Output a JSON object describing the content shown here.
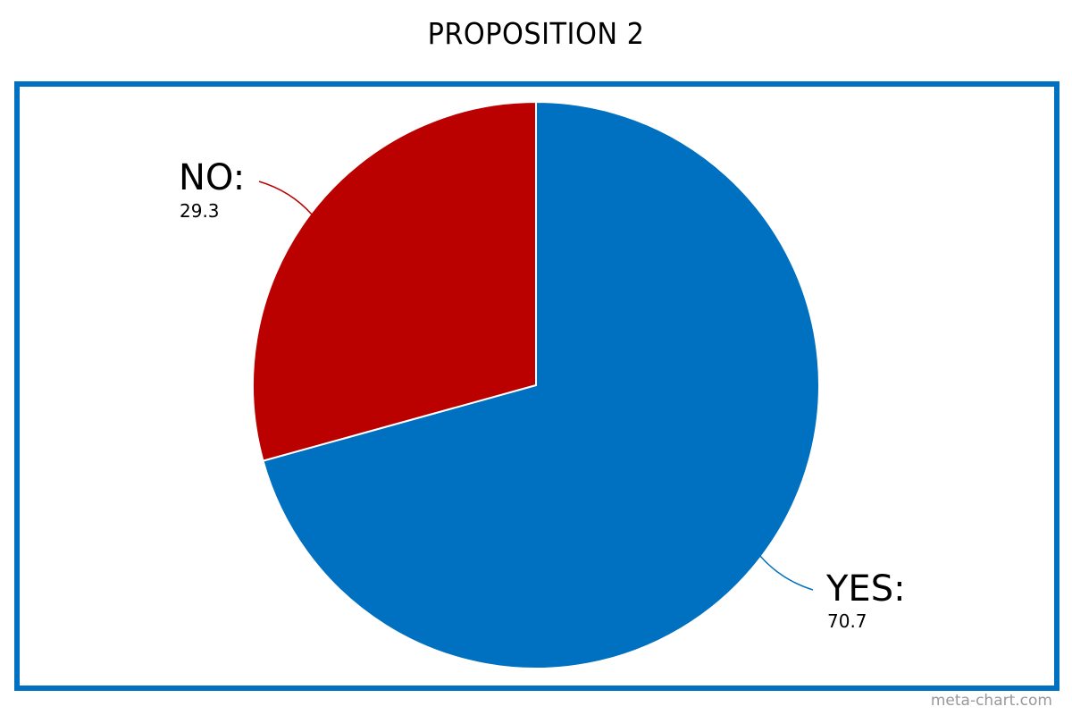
{
  "chart_data": {
    "type": "pie",
    "title": "PROPOSITION 2",
    "slices": [
      {
        "label": "YES:",
        "value": 70.7,
        "value_text": "70.7",
        "color": "#0070c0"
      },
      {
        "label": "NO:",
        "value": 29.3,
        "value_text": "29.3",
        "color": "#bb0000"
      }
    ],
    "start_angle": "12 o'clock",
    "direction": "clockwise",
    "frame_color": "#0070c0",
    "legend": "none"
  },
  "watermark": "meta-chart.com"
}
